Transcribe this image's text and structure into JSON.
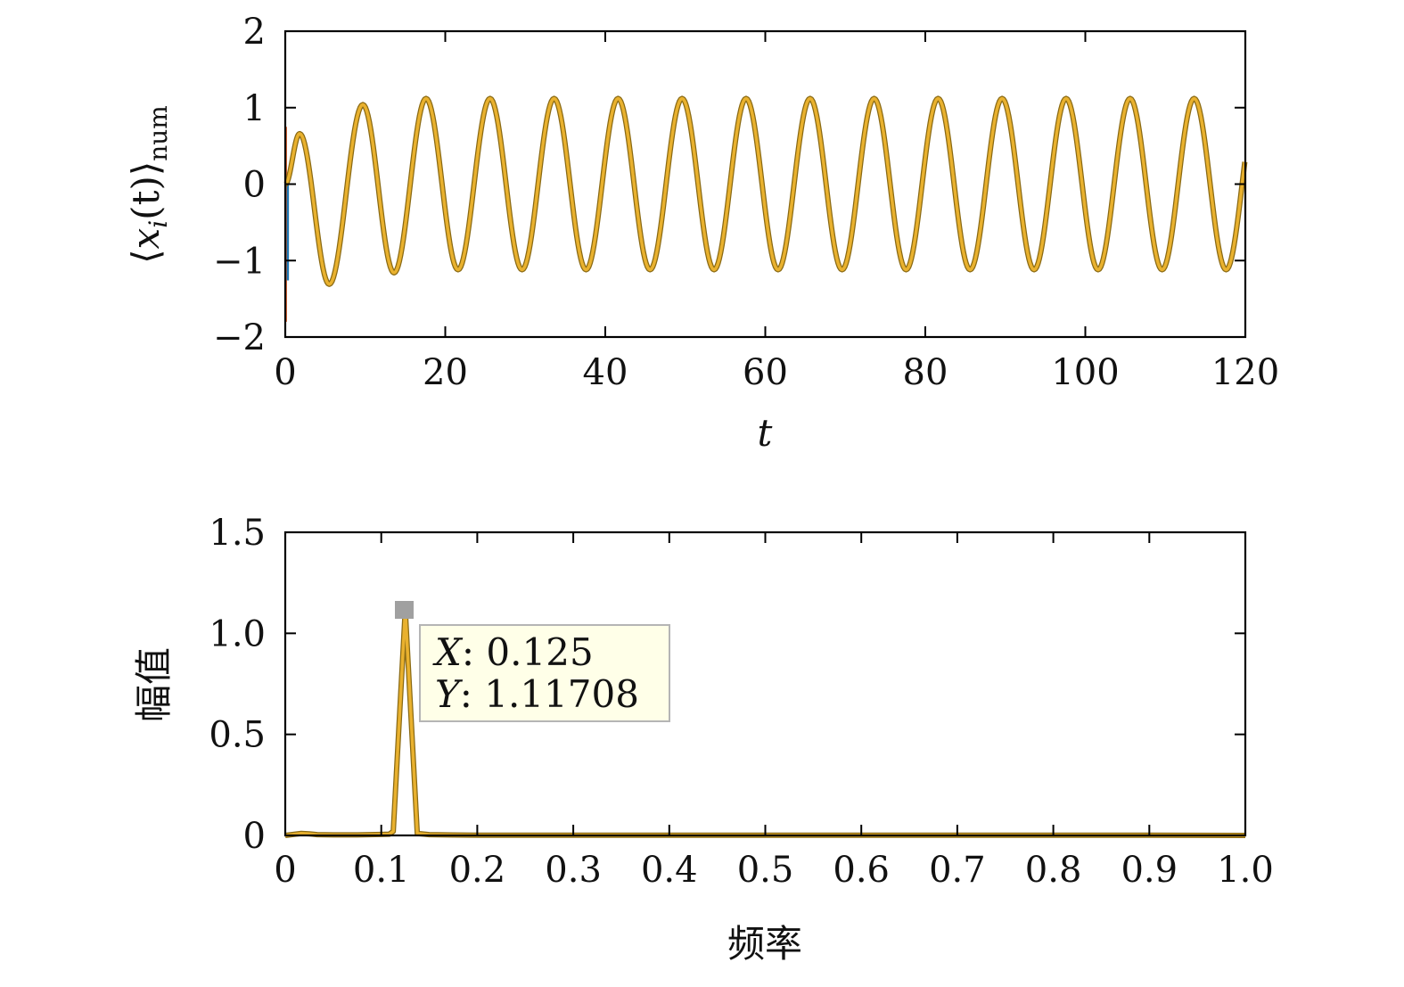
{
  "colors": {
    "series_main": "#E9B12E",
    "series_main_edge": "#8a6a14",
    "series_blue": "#1f77b4",
    "series_red": "#d95319",
    "datatip_bg": "#FFFFE8",
    "datatip_border": "#B5B5B5",
    "marker": "#A0A0A0"
  },
  "chart_data": [
    {
      "type": "line",
      "xlabel": "t",
      "ylabel_parts": {
        "open": "⟨",
        "var": "x",
        "sub": "i",
        "args": "(t)",
        "close": "⟩",
        "subscript": "num"
      },
      "xlim": [
        0,
        120
      ],
      "ylim": [
        -2,
        2
      ],
      "xticks": [
        0,
        20,
        40,
        60,
        80,
        100,
        120
      ],
      "xtick_labels": [
        "0",
        "20",
        "40",
        "60",
        "80",
        "100",
        "120"
      ],
      "yticks": [
        2,
        1,
        0,
        -1,
        -2
      ],
      "ytick_labels": [
        "2",
        "1",
        "0",
        "−1",
        "−2"
      ],
      "grid": false,
      "series": [
        {
          "kind": "oscillation",
          "frequency": 0.125,
          "amplitude_steady": 1.12,
          "start_value": 0,
          "first_peak": [
            1.8,
            0.66
          ],
          "first_trough": [
            5.5,
            -1.31
          ],
          "second_peak": [
            9.7,
            1.04
          ],
          "second_trough": [
            13.6,
            -1.16
          ],
          "x_range": [
            0,
            120
          ]
        }
      ],
      "transient_spikes": [
        {
          "x": 0.1,
          "y_range": [
            -1.8,
            0.75
          ]
        }
      ]
    },
    {
      "type": "line",
      "xlabel": "频率",
      "ylabel": "幅值",
      "xlim": [
        0,
        1
      ],
      "ylim": [
        0,
        1.5
      ],
      "xticks": [
        0,
        0.1,
        0.2,
        0.3,
        0.4,
        0.5,
        0.6,
        0.7,
        0.8,
        0.9,
        1.0
      ],
      "xtick_labels": [
        "0",
        "0.1",
        "0.2",
        "0.3",
        "0.4",
        "0.5",
        "0.6",
        "0.7",
        "0.8",
        "0.9",
        "1.0"
      ],
      "yticks": [
        1.5,
        1.0,
        0.5,
        0
      ],
      "ytick_labels": [
        "1.5",
        "1.0",
        "0.5",
        "0"
      ],
      "grid": false,
      "series": [
        {
          "x": [
            0,
            0.0083,
            0.0167,
            0.025,
            0.0333,
            0.05,
            0.075,
            0.1,
            0.1083,
            0.1125,
            0.125,
            0.1375,
            0.15,
            0.175,
            0.2,
            0.25,
            0.3,
            0.4,
            0.5,
            0.6,
            0.7,
            0.8,
            0.9,
            1.0
          ],
          "y": [
            0.0,
            0.005,
            0.01,
            0.008,
            0.004,
            0.003,
            0.003,
            0.005,
            0.006,
            0.02,
            1.11708,
            0.01,
            0.004,
            0.002,
            0.001,
            0.001,
            0.001,
            0.001,
            0.001,
            0.001,
            0.001,
            0.001,
            0.001,
            0.0
          ]
        }
      ],
      "datatip": {
        "x_label": "X",
        "x_value": "0.125",
        "y_label": "Y",
        "y_value": "1.11708",
        "point": [
          0.125,
          1.11708
        ]
      }
    }
  ]
}
